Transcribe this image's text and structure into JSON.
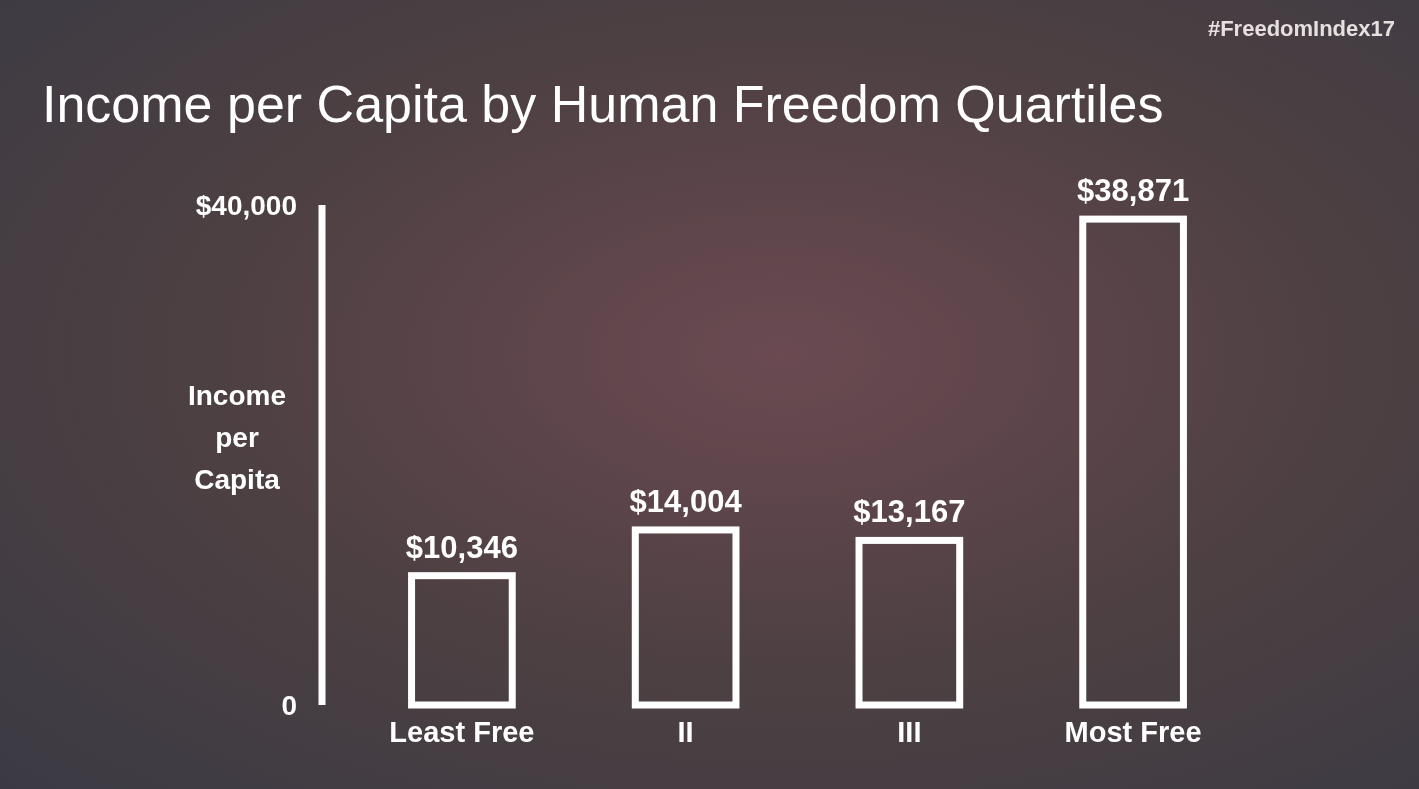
{
  "chart_data": {
    "type": "bar",
    "title": "Income per Capita by Human Freedom Quartiles",
    "ylabel": "Income per Capita",
    "categories": [
      "Least Free",
      "II",
      "III",
      "Most Free"
    ],
    "values": [
      10346,
      14004,
      13167,
      38871
    ],
    "value_labels": [
      "$10,346",
      "$14,004",
      "$13,167",
      "$38,871"
    ],
    "color": "#ffffff",
    "ylim": [
      0,
      40000
    ],
    "yticks": [
      {
        "value": 0,
        "label": "0"
      },
      {
        "value": 40000,
        "label": "$40,000"
      }
    ],
    "annotations": [
      "#FreedomIndex17"
    ]
  }
}
